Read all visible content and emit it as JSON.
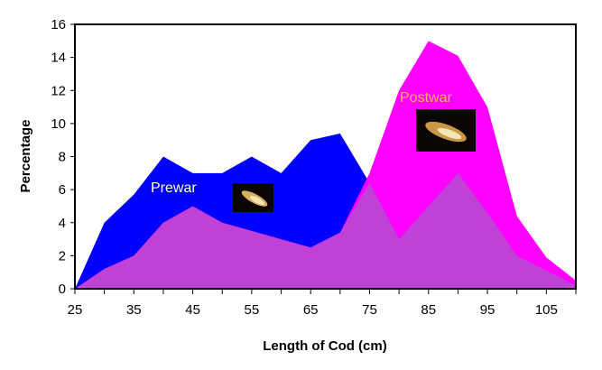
{
  "chart_data": {
    "type": "area",
    "title": "",
    "xlabel": "Length of Cod (cm)",
    "ylabel": "Percentage",
    "xlim": [
      25,
      110
    ],
    "ylim": [
      0,
      16
    ],
    "x": [
      25,
      30,
      35,
      40,
      45,
      50,
      55,
      60,
      65,
      70,
      75,
      80,
      85,
      90,
      95,
      100,
      105,
      110
    ],
    "x_tick_labels": [
      "25",
      "35",
      "45",
      "55",
      "65",
      "75",
      "85",
      "95",
      "105"
    ],
    "y_tick_labels": [
      "0",
      "2",
      "4",
      "6",
      "8",
      "10",
      "12",
      "14",
      "16"
    ],
    "grid": false,
    "series": [
      {
        "name": "Prewar",
        "color": "#0000ff",
        "label_color": "#ffffc8",
        "values": [
          0,
          4.0,
          5.7,
          8.0,
          7.0,
          7.0,
          8.0,
          7.0,
          9.0,
          9.4,
          6.4,
          3.0,
          5.0,
          7.0,
          4.6,
          2.0,
          1.1,
          0.2
        ]
      },
      {
        "name": "Postwar",
        "color": "#ff00ff",
        "label_color": "#ffb060",
        "values": [
          0,
          1.2,
          2.0,
          4.0,
          5.0,
          4.0,
          3.5,
          3.0,
          2.5,
          3.4,
          7.0,
          12.0,
          15.0,
          14.1,
          11.0,
          4.4,
          1.9,
          0.5
        ]
      }
    ],
    "overlap_color": "#c040d8",
    "icons": [
      "cod-fish-image",
      "cod-fish-image"
    ]
  }
}
